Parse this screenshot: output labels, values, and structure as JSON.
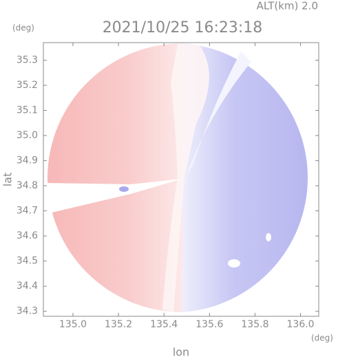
{
  "chart_data": {
    "type": "radar-image",
    "title": "2021/10/25 16:23:18",
    "subtitle": "ALT(km) 2.0",
    "x_label": "lon",
    "y_label": "lat",
    "x_unit": "(deg)",
    "y_unit": "(deg)",
    "xlim": [
      134.87,
      136.08
    ],
    "ylim": [
      34.28,
      35.37
    ],
    "xticks": [
      {
        "value": 135.0,
        "label": "135.0"
      },
      {
        "value": 135.2,
        "label": "135.2"
      },
      {
        "value": 135.4,
        "label": "135.4"
      },
      {
        "value": 135.6,
        "label": "135.6"
      },
      {
        "value": 135.8,
        "label": "135.8"
      },
      {
        "value": 136.0,
        "label": "136.0"
      }
    ],
    "yticks": [
      {
        "value": 34.3,
        "label": "34.3"
      },
      {
        "value": 34.4,
        "label": "34.4"
      },
      {
        "value": 34.5,
        "label": "34.5"
      },
      {
        "value": 34.6,
        "label": "34.6"
      },
      {
        "value": 34.7,
        "label": "34.7"
      },
      {
        "value": 34.8,
        "label": "34.8"
      },
      {
        "value": 34.9,
        "label": "34.9"
      },
      {
        "value": 35.0,
        "label": "35.0"
      },
      {
        "value": 35.1,
        "label": "35.1"
      },
      {
        "value": 35.2,
        "label": "35.2"
      },
      {
        "value": 35.3,
        "label": "35.3"
      }
    ]
  }
}
